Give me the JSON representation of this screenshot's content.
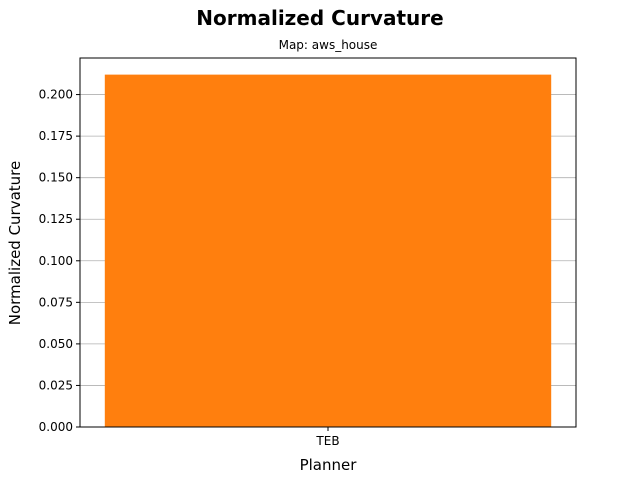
{
  "chart_data": {
    "type": "bar",
    "title": "Normalized Curvature",
    "subtitle": "Map: aws_house",
    "xlabel": "Planner",
    "ylabel": "Normalized Curvature",
    "categories": [
      "TEB"
    ],
    "values": [
      0.212
    ],
    "ylim": [
      0,
      0.222
    ],
    "yticks": [
      0.0,
      0.025,
      0.05,
      0.075,
      0.1,
      0.125,
      0.15,
      0.175,
      0.2
    ],
    "ytick_labels": [
      "0.000",
      "0.025",
      "0.050",
      "0.075",
      "0.100",
      "0.125",
      "0.150",
      "0.175",
      "0.200"
    ],
    "grid": "y-axis major",
    "bar_color": "#ff7f0e",
    "grid_color": "#b0b0b0"
  }
}
